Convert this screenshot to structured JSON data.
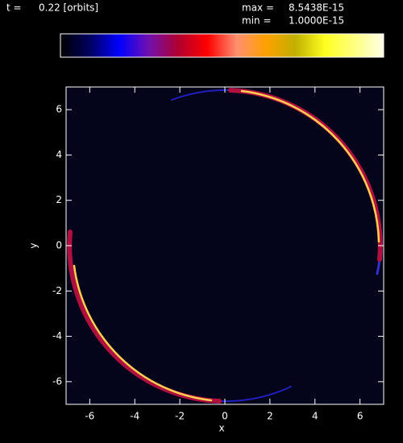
{
  "header": {
    "time_label": "t =",
    "time_value": "0.22 [orbits]",
    "max_label": "max =",
    "max_value": "8.5438E-15",
    "min_label": "min =",
    "min_value": "1.0000E-15"
  },
  "chart_data": {
    "type": "image",
    "x_label": "x",
    "y_label": "y",
    "xlim": [
      -7.05,
      7.05
    ],
    "ylim": [
      -7,
      7
    ],
    "xticks": [
      -6,
      -4,
      -2,
      0,
      2,
      4,
      6
    ],
    "yticks": [
      -6,
      -4,
      -2,
      0,
      2,
      4,
      6
    ],
    "colormap": [
      "#000000",
      "#000060",
      "#0000ff",
      "#7010b0",
      "#b00030",
      "#ff0000",
      "#ff9070",
      "#ffa000",
      "#c0b000",
      "#ffff20",
      "#ffff80",
      "#ffffe8"
    ],
    "background": "#04041a"
  }
}
